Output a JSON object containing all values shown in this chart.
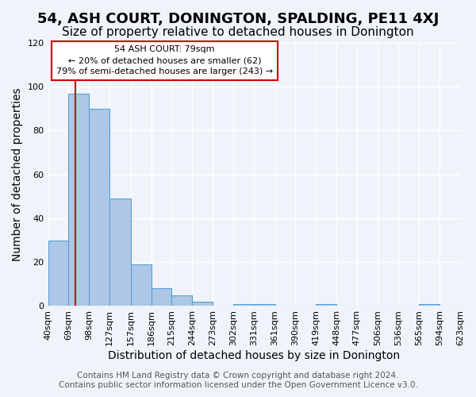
{
  "title": "54, ASH COURT, DONINGTON, SPALDING, PE11 4XJ",
  "subtitle": "Size of property relative to detached houses in Donington",
  "xlabel": "Distribution of detached houses by size in Donington",
  "ylabel": "Number of detached properties",
  "bar_values": [
    30,
    97,
    90,
    49,
    19,
    8,
    5,
    2,
    0,
    1,
    1,
    0,
    0,
    1,
    0,
    0,
    0,
    0,
    1,
    0
  ],
  "bin_edges": [
    40,
    69,
    98,
    127,
    157,
    186,
    215,
    244,
    273,
    302,
    331,
    361,
    390,
    419,
    448,
    477,
    506,
    536,
    565,
    594,
    623
  ],
  "tick_labels": [
    "40sqm",
    "69sqm",
    "98sqm",
    "127sqm",
    "157sqm",
    "186sqm",
    "215sqm",
    "244sqm",
    "273sqm",
    "302sqm",
    "331sqm",
    "361sqm",
    "390sqm",
    "419sqm",
    "448sqm",
    "477sqm",
    "506sqm",
    "536sqm",
    "565sqm",
    "594sqm",
    "623sqm"
  ],
  "bar_color": "#adc8e6",
  "bar_edge_color": "#5a9fd4",
  "vline_x": 79,
  "vline_color": "#cc0000",
  "ylim": [
    0,
    120
  ],
  "yticks": [
    0,
    20,
    40,
    60,
    80,
    100,
    120
  ],
  "annotation_title": "54 ASH COURT: 79sqm",
  "annotation_line1": "← 20% of detached houses are smaller (62)",
  "annotation_line2": "79% of semi-detached houses are larger (243) →",
  "annotation_box_color": "#ffffff",
  "annotation_box_edge": "#cc0000",
  "footer1": "Contains HM Land Registry data © Crown copyright and database right 2024.",
  "footer2": "Contains public sector information licensed under the Open Government Licence v3.0.",
  "background_color": "#f0f4fa",
  "grid_color": "#ffffff",
  "title_fontsize": 13,
  "subtitle_fontsize": 11,
  "axis_label_fontsize": 10,
  "tick_fontsize": 8,
  "footer_fontsize": 7.5
}
